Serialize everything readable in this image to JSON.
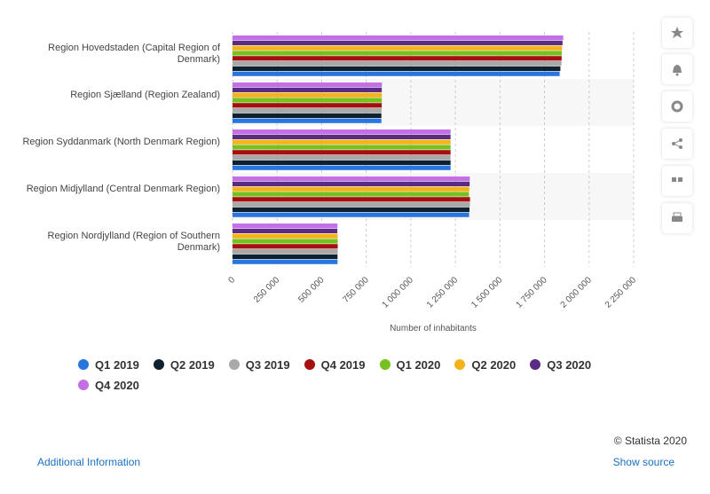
{
  "chart_data": {
    "type": "bar",
    "orientation": "horizontal",
    "categories": [
      "Region Hovedstaden (Capital Region of Denmark)",
      "Region Sjælland (Region Zealand)",
      "Region Syddanmark (North Denmark Region)",
      "Region Midjylland (Central Denmark Region)",
      "Region Nordjylland (Region of Southern Denmark)"
    ],
    "x_label": "Number of inhabitants",
    "xlim": [
      0,
      2250000
    ],
    "xticks": [
      0,
      {
        "value": 250000,
        "label": "250 000"
      },
      {
        "value": 500000,
        "label": "500 000"
      },
      {
        "value": 750000,
        "label": "750 000"
      },
      {
        "value": 1000000,
        "label": "1 000 000"
      },
      {
        "value": 1250000,
        "label": "1 250 000"
      },
      {
        "value": 1500000,
        "label": "1 500 000"
      },
      {
        "value": 1750000,
        "label": "1 750 000"
      },
      {
        "value": 2000000,
        "label": "2 000 000"
      },
      {
        "value": 2250000,
        "label": "2 250 000"
      }
    ],
    "grid": true,
    "series": [
      {
        "name": "Q1 2019",
        "color": "#2876dd",
        "values": [
          1835000,
          835000,
          1223000,
          1327000,
          589000
        ]
      },
      {
        "name": "Q2 2019",
        "color": "#0f2130",
        "values": [
          1839000,
          835000,
          1223000,
          1329000,
          589000
        ]
      },
      {
        "name": "Q3 2019",
        "color": "#a9a9a9",
        "values": [
          1845000,
          836000,
          1223000,
          1331000,
          590000
        ]
      },
      {
        "name": "Q4 2019",
        "color": "#a50f0f",
        "values": [
          1846000,
          837000,
          1223000,
          1332000,
          590000
        ]
      },
      {
        "name": "Q1 2020",
        "color": "#76c11f",
        "values": [
          1847000,
          837000,
          1223000,
          1326000,
          590000
        ]
      },
      {
        "name": "Q2 2020",
        "color": "#f4b21c",
        "values": [
          1848000,
          837000,
          1223000,
          1328000,
          590000
        ]
      },
      {
        "name": "Q3 2020",
        "color": "#5b2c83",
        "values": [
          1851000,
          837000,
          1223000,
          1330000,
          588000
        ]
      },
      {
        "name": "Q4 2020",
        "color": "#c370e6",
        "values": [
          1855000,
          838000,
          1223000,
          1331000,
          589000
        ]
      }
    ]
  },
  "footer": {
    "copyright": "© Statista 2020",
    "additional_info": "Additional Information",
    "show_source": "Show source"
  }
}
